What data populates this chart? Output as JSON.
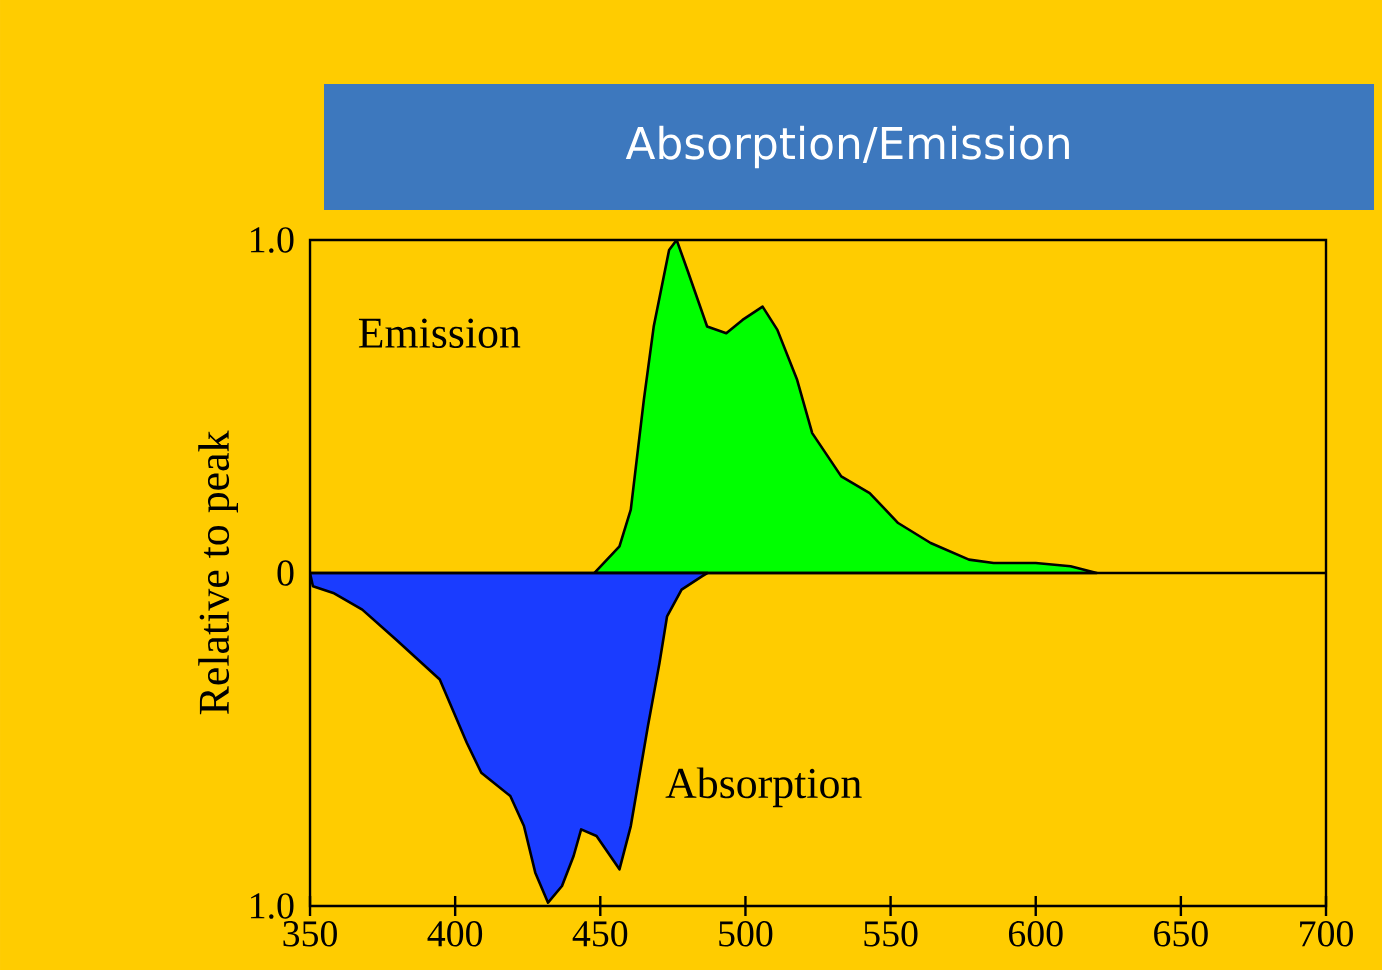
{
  "chart_data": {
    "type": "area",
    "title": "Absorption/Emission",
    "ylabel": "Relative to peak",
    "xlim": [
      350,
      700
    ],
    "xticks": [
      350,
      400,
      450,
      500,
      550,
      600,
      650,
      700
    ],
    "ylim": [
      -1,
      1
    ],
    "yticks": [
      {
        "value": -1,
        "label": "1.0"
      },
      0,
      {
        "value": 1,
        "label": "1.0"
      }
    ],
    "legend": false,
    "grid": false,
    "ref_lines": [
      {
        "axis": "y",
        "value": 0
      }
    ],
    "series": [
      {
        "name": "Emission",
        "color": "#00ff00",
        "x": [
          448,
          456.6,
          460.5,
          465,
          468.4,
          473.7,
          476.3,
          480,
          486.8,
          493.4,
          499,
          505.9,
          511,
          517.8,
          523,
          533,
          542.8,
          552.6,
          563.8,
          577,
          585.5,
          600,
          612,
          621
        ],
        "values": [
          0,
          0.08,
          0.19,
          0.52,
          0.74,
          0.97,
          1.0,
          0.91,
          0.74,
          0.72,
          0.76,
          0.8,
          0.73,
          0.58,
          0.42,
          0.29,
          0.24,
          0.15,
          0.09,
          0.04,
          0.03,
          0.03,
          0.02,
          0
        ]
      },
      {
        "name": "Absorption",
        "color": "#1a3cff",
        "x": [
          350,
          351,
          358,
          368,
          379.6,
          394.7,
          404,
          409,
          419,
          423.7,
          427.6,
          432,
          436.8,
          440.8,
          443.4,
          448.7,
          456.6,
          460.5,
          466.4,
          470.4,
          473,
          478,
          485,
          487
        ],
        "values": [
          0,
          -0.04,
          -0.06,
          -0.11,
          -0.2,
          -0.32,
          -0.51,
          -0.6,
          -0.67,
          -0.76,
          -0.9,
          -0.99,
          -0.94,
          -0.85,
          -0.77,
          -0.79,
          -0.89,
          -0.76,
          -0.46,
          -0.27,
          -0.13,
          -0.05,
          -0.01,
          0
        ]
      }
    ]
  }
}
